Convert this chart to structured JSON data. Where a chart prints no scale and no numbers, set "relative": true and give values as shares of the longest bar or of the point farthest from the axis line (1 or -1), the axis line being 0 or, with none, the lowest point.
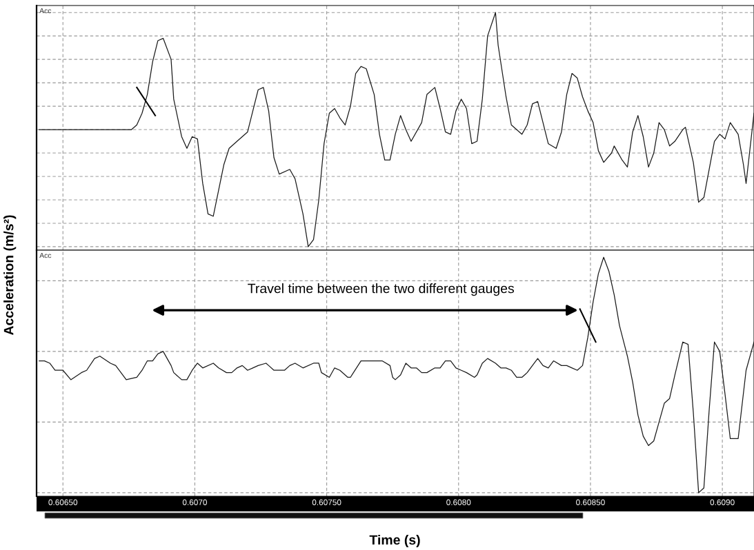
{
  "chart_data": [
    {
      "type": "line",
      "relative": true,
      "ylabel": "Acceleration (m/s²)",
      "annotations": [
        "Acc"
      ],
      "grid": true,
      "tick_labels": false,
      "xlim": [
        0.6064,
        0.60912
      ],
      "xticks": [
        {
          "value": 0.6065,
          "label": null
        },
        {
          "value": 0.607,
          "label": null
        },
        {
          "value": 0.6075,
          "label": null
        },
        {
          "value": 0.608,
          "label": null
        },
        {
          "value": 0.6085,
          "label": null
        },
        {
          "value": 0.609,
          "label": null
        }
      ],
      "series": [
        {
          "color": "#1a1a1a",
          "x": [
            0.60641,
            0.60676,
            0.60678,
            0.6068,
            0.60682,
            0.60684,
            0.60686,
            0.60688,
            0.60691,
            0.60692,
            0.60695,
            0.60697,
            0.60699,
            0.60701,
            0.60703,
            0.60705,
            0.60707,
            0.60709,
            0.60711,
            0.60713,
            0.60716,
            0.60718,
            0.6072,
            0.60722,
            0.60724,
            0.60726,
            0.60728,
            0.6073,
            0.60732,
            0.60736,
            0.60738,
            0.60741,
            0.60743,
            0.60745,
            0.60747,
            0.60749,
            0.60751,
            0.60753,
            0.60755,
            0.60757,
            0.60759,
            0.60761,
            0.60763,
            0.60765,
            0.60768,
            0.6077,
            0.60772,
            0.60774,
            0.60776,
            0.60778,
            0.6078,
            0.60782,
            0.60786,
            0.60788,
            0.60791,
            0.60793,
            0.60795,
            0.60797,
            0.60799,
            0.60801,
            0.60803,
            0.60805,
            0.60807,
            0.60809,
            0.60811,
            0.60814,
            0.60815,
            0.60818,
            0.6082,
            0.60824,
            0.60826,
            0.60828,
            0.6083,
            0.60832,
            0.60834,
            0.60837,
            0.60839,
            0.60841,
            0.60843,
            0.60845,
            0.60847,
            0.60849,
            0.60851,
            0.60853,
            0.60855,
            0.60858,
            0.60859,
            0.60862,
            0.60864,
            0.60866,
            0.60868,
            0.6087,
            0.60872,
            0.60874,
            0.60876,
            0.60878,
            0.6088,
            0.60882,
            0.60885,
            0.60886,
            0.60889,
            0.60891,
            0.60893,
            0.60895,
            0.60897,
            0.60899,
            0.60901,
            0.60903,
            0.60906,
            0.60908,
            0.60909,
            0.60912
          ],
          "values": [
            0.5,
            0.5,
            0.52,
            0.57,
            0.65,
            0.79,
            0.88,
            0.89,
            0.8,
            0.63,
            0.47,
            0.42,
            0.47,
            0.46,
            0.27,
            0.14,
            0.13,
            0.24,
            0.35,
            0.42,
            0.45,
            0.47,
            0.49,
            0.58,
            0.67,
            0.68,
            0.58,
            0.38,
            0.31,
            0.33,
            0.29,
            0.14,
            0.0,
            0.03,
            0.2,
            0.44,
            0.57,
            0.59,
            0.55,
            0.52,
            0.6,
            0.74,
            0.77,
            0.76,
            0.65,
            0.48,
            0.37,
            0.37,
            0.48,
            0.56,
            0.5,
            0.45,
            0.53,
            0.65,
            0.68,
            0.59,
            0.49,
            0.48,
            0.58,
            0.63,
            0.59,
            0.44,
            0.45,
            0.63,
            0.9,
            1.0,
            0.86,
            0.64,
            0.52,
            0.48,
            0.52,
            0.61,
            0.62,
            0.53,
            0.44,
            0.42,
            0.49,
            0.65,
            0.74,
            0.72,
            0.64,
            0.58,
            0.53,
            0.41,
            0.36,
            0.4,
            0.43,
            0.37,
            0.34,
            0.49,
            0.56,
            0.47,
            0.34,
            0.4,
            0.53,
            0.5,
            0.43,
            0.45,
            0.5,
            0.51,
            0.36,
            0.19,
            0.21,
            0.33,
            0.45,
            0.48,
            0.46,
            0.53,
            0.48,
            0.35,
            0.27,
            0.57
          ]
        }
      ]
    },
    {
      "type": "line",
      "relative": true,
      "xlabel": "Time (s)",
      "annotations": [
        "Acc",
        "Travel time between the two different gauges"
      ],
      "grid": true,
      "tick_labels": "x",
      "xlim": [
        0.6064,
        0.60912
      ],
      "xticks": [
        {
          "value": 0.6065,
          "label": "0.60650"
        },
        {
          "value": 0.607,
          "label": "0.6070"
        },
        {
          "value": 0.6075,
          "label": "0.60750"
        },
        {
          "value": 0.608,
          "label": "0.6080"
        },
        {
          "value": 0.6085,
          "label": "0.60850"
        },
        {
          "value": 0.609,
          "label": "0.6090"
        }
      ],
      "series": [
        {
          "color": "#1a1a1a",
          "x": [
            0.60641,
            0.60643,
            0.60645,
            0.60647,
            0.6065,
            0.60653,
            0.60657,
            0.60659,
            0.60662,
            0.60664,
            0.60668,
            0.6067,
            0.60672,
            0.60674,
            0.60678,
            0.6068,
            0.60682,
            0.60684,
            0.60686,
            0.60688,
            0.60691,
            0.60692,
            0.60695,
            0.60697,
            0.60699,
            0.60701,
            0.60703,
            0.60707,
            0.60709,
            0.60712,
            0.60714,
            0.60716,
            0.60718,
            0.6072,
            0.60722,
            0.60724,
            0.60727,
            0.60728,
            0.6073,
            0.60734,
            0.60736,
            0.60738,
            0.60741,
            0.60745,
            0.60747,
            0.60748,
            0.60751,
            0.60753,
            0.60755,
            0.60758,
            0.60759,
            0.60763,
            0.60765,
            0.60769,
            0.60771,
            0.60774,
            0.60775,
            0.60776,
            0.60778,
            0.6078,
            0.60782,
            0.60784,
            0.60786,
            0.60788,
            0.60791,
            0.60793,
            0.60795,
            0.60797,
            0.60799,
            0.60801,
            0.60803,
            0.60806,
            0.60807,
            0.60809,
            0.60811,
            0.60814,
            0.60816,
            0.60818,
            0.6082,
            0.60822,
            0.60824,
            0.60826,
            0.60828,
            0.6083,
            0.60832,
            0.60834,
            0.60836,
            0.60839,
            0.60841,
            0.60843,
            0.60845,
            0.60847,
            0.60849,
            0.60851,
            0.60853,
            0.60855,
            0.60857,
            0.60859,
            0.60861,
            0.60864,
            0.60866,
            0.60868,
            0.6087,
            0.60872,
            0.60874,
            0.60876,
            0.60878,
            0.6088,
            0.60882,
            0.60885,
            0.60887,
            0.60889,
            0.60891,
            0.60893,
            0.60895,
            0.60897,
            0.60899,
            0.60901,
            0.60903,
            0.60906,
            0.60909,
            0.60912
          ],
          "values": [
            0.56,
            0.56,
            0.55,
            0.52,
            0.52,
            0.48,
            0.51,
            0.52,
            0.57,
            0.58,
            0.55,
            0.54,
            0.51,
            0.48,
            0.49,
            0.52,
            0.56,
            0.56,
            0.59,
            0.6,
            0.54,
            0.51,
            0.48,
            0.48,
            0.52,
            0.55,
            0.53,
            0.55,
            0.53,
            0.51,
            0.51,
            0.53,
            0.54,
            0.52,
            0.53,
            0.54,
            0.55,
            0.54,
            0.52,
            0.52,
            0.54,
            0.55,
            0.53,
            0.55,
            0.55,
            0.51,
            0.49,
            0.53,
            0.52,
            0.49,
            0.49,
            0.56,
            0.56,
            0.56,
            0.56,
            0.54,
            0.49,
            0.48,
            0.5,
            0.55,
            0.53,
            0.53,
            0.51,
            0.51,
            0.53,
            0.53,
            0.56,
            0.56,
            0.53,
            0.52,
            0.51,
            0.49,
            0.5,
            0.55,
            0.57,
            0.55,
            0.53,
            0.53,
            0.52,
            0.49,
            0.49,
            0.51,
            0.54,
            0.57,
            0.54,
            0.53,
            0.56,
            0.54,
            0.54,
            0.53,
            0.52,
            0.54,
            0.66,
            0.81,
            0.93,
            1.0,
            0.94,
            0.84,
            0.71,
            0.58,
            0.47,
            0.33,
            0.24,
            0.2,
            0.22,
            0.3,
            0.38,
            0.4,
            0.5,
            0.64,
            0.63,
            0.34,
            0.0,
            0.02,
            0.35,
            0.64,
            0.6,
            0.42,
            0.23,
            0.23,
            0.52,
            0.64
          ]
        }
      ]
    }
  ]
}
